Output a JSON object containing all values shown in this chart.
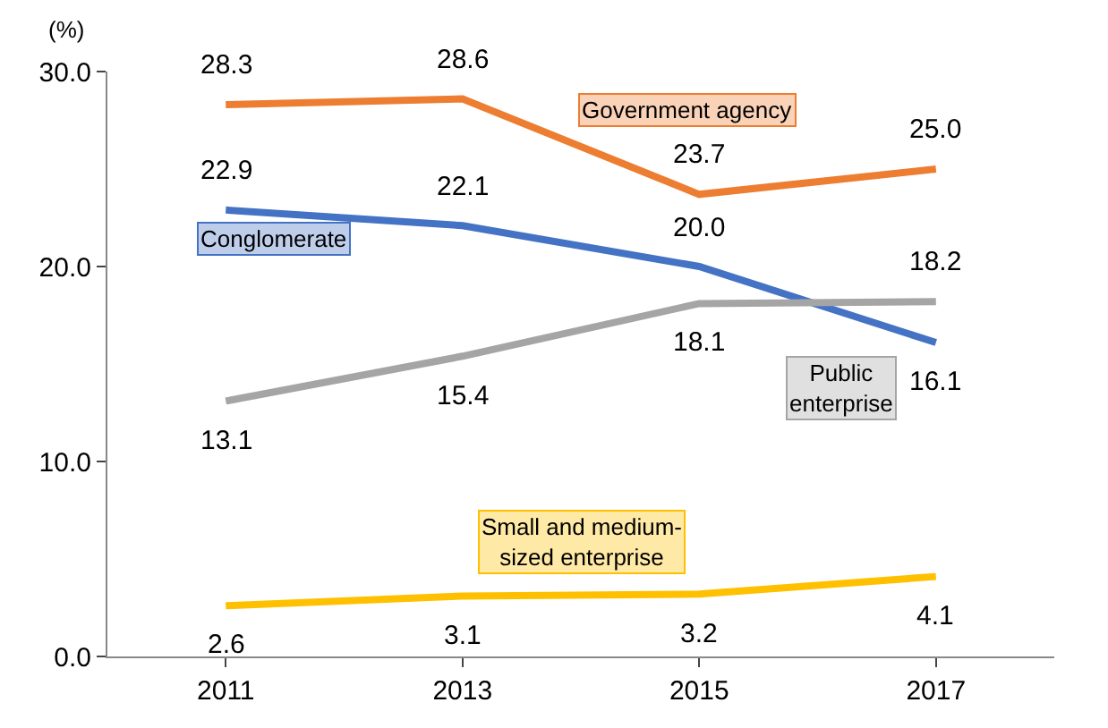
{
  "chart_data": {
    "type": "line",
    "ylabel": "(%)",
    "categories": [
      "2011",
      "2013",
      "2015",
      "2017"
    ],
    "ylim": [
      0,
      30
    ],
    "yticks": [
      {
        "value": 0,
        "label": "0.0"
      },
      {
        "value": 10,
        "label": "10.0"
      },
      {
        "value": 20,
        "label": "20.0"
      },
      {
        "value": 30,
        "label": "30.0"
      }
    ],
    "legend": false,
    "marker": "none",
    "line_style": "solid",
    "series": [
      {
        "name": "Government agency",
        "color": "#ed7d31",
        "values": [
          28.3,
          28.6,
          23.7,
          25.0
        ],
        "value_labels": [
          "28.3",
          "28.6",
          "23.7",
          "25.0"
        ]
      },
      {
        "name": "Conglomerate",
        "color": "#4472c4",
        "values": [
          22.9,
          22.1,
          20.0,
          16.1
        ],
        "value_labels": [
          "22.9",
          "22.1",
          "20.0",
          "16.1"
        ]
      },
      {
        "name": "Public\nenterprise",
        "color": "#a5a5a5",
        "values": [
          13.1,
          15.4,
          18.1,
          18.2
        ],
        "value_labels": [
          "13.1",
          "15.4",
          "18.1",
          "18.2"
        ]
      },
      {
        "name": "Small and medium-\nsized enterprise",
        "color": "#ffc000",
        "values": [
          2.6,
          3.1,
          3.2,
          4.1
        ],
        "value_labels": [
          "2.6",
          "3.1",
          "3.2",
          "4.1"
        ]
      }
    ]
  }
}
